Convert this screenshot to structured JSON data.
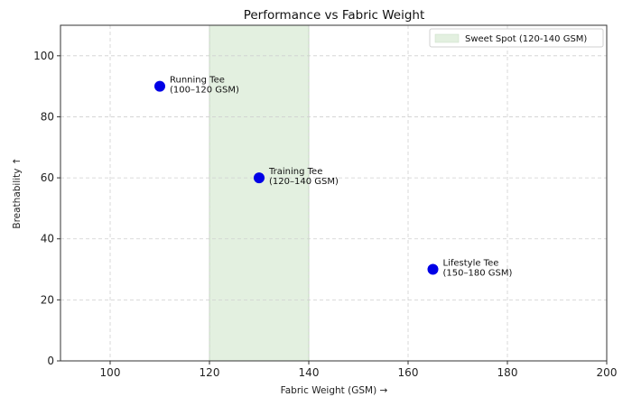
{
  "chart_data": {
    "type": "scatter",
    "title": "Performance vs Fabric Weight",
    "xlabel": "Fabric Weight (GSM)  →",
    "ylabel": "Breathability  ↑",
    "xlim": [
      90,
      200
    ],
    "ylim": [
      0,
      110
    ],
    "xticks": [
      100,
      120,
      140,
      160,
      180,
      200
    ],
    "yticks": [
      0,
      20,
      40,
      60,
      80,
      100
    ],
    "grid": true,
    "legend_position": "upper right",
    "points": [
      {
        "label": "Running Tee",
        "sublabel": "(100–120 GSM)",
        "x": 110,
        "y": 90
      },
      {
        "label": "Training Tee",
        "sublabel": "(120–140 GSM)",
        "x": 130,
        "y": 60
      },
      {
        "label": "Lifestyle Tee",
        "sublabel": "(150–180 GSM)",
        "x": 165,
        "y": 30
      }
    ],
    "shaded_region": {
      "label": "Sweet Spot (120-140 GSM)",
      "x_start": 120,
      "x_end": 140,
      "color": "#e3f0e0"
    },
    "marker_color": "#0000e6"
  },
  "legend": {
    "items": [
      {
        "label": "Sweet Spot (120-140 GSM)"
      }
    ]
  }
}
